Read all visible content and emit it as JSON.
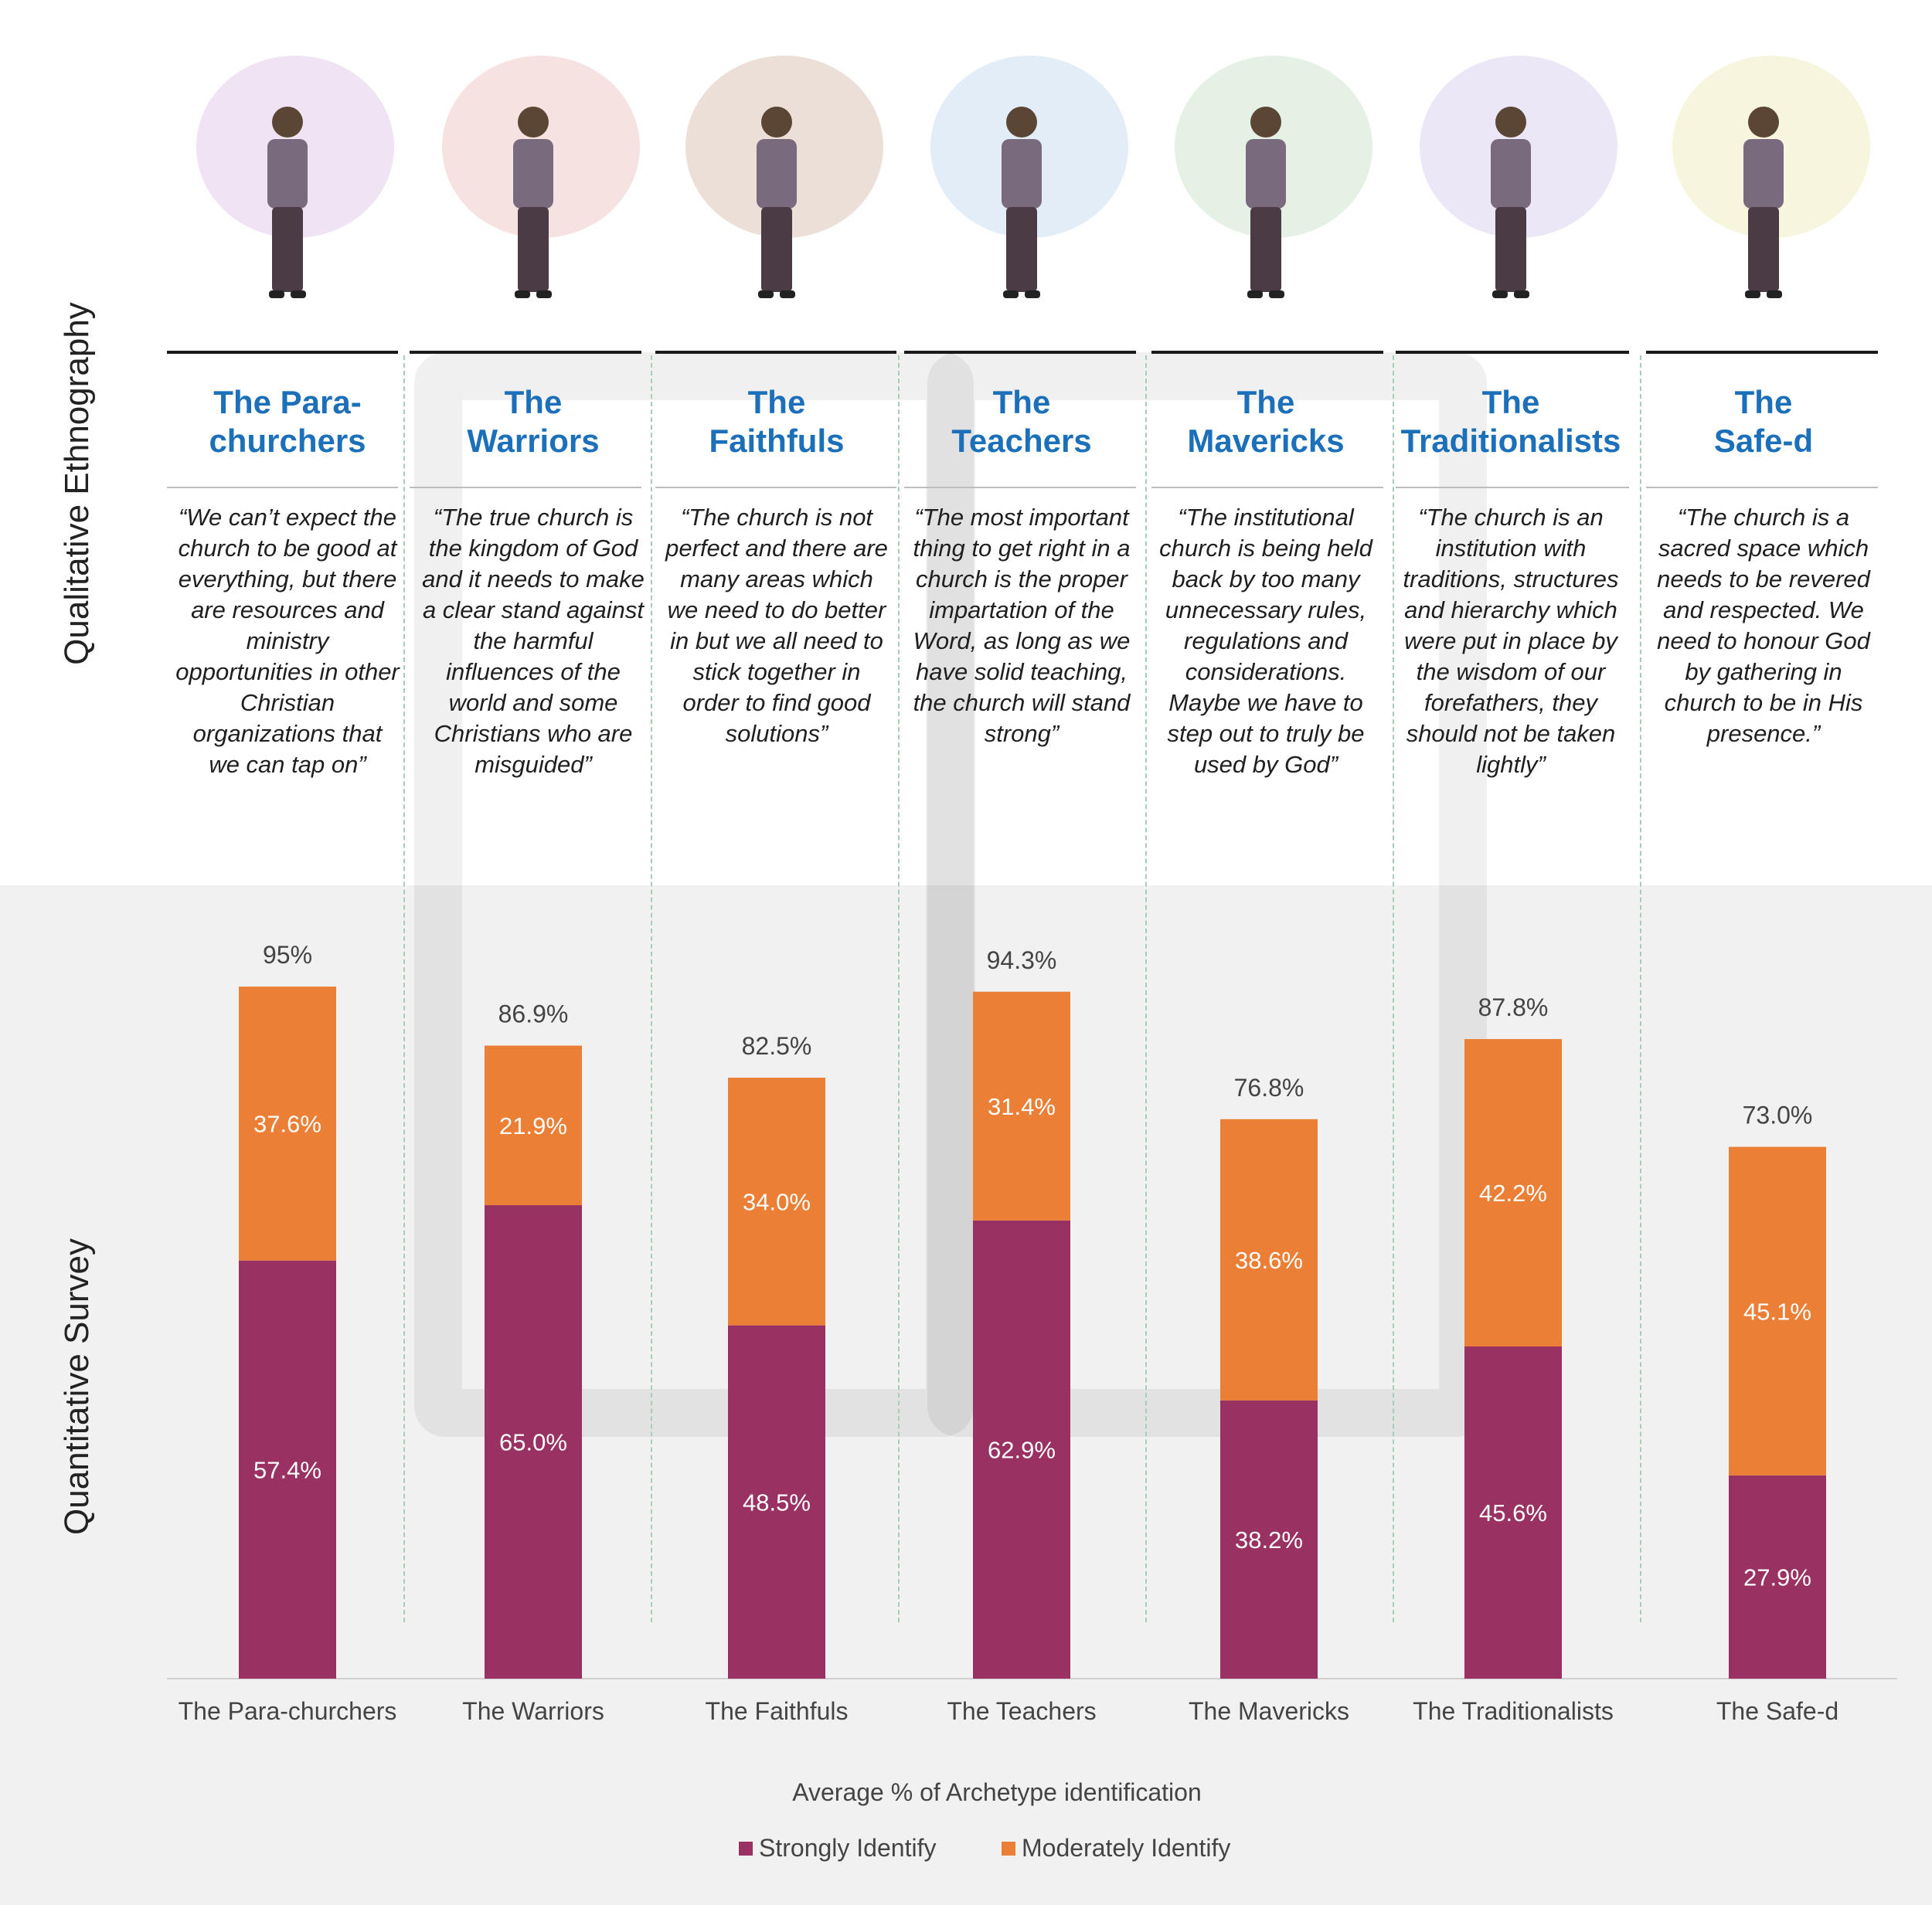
{
  "sections": {
    "top_label": "Qualitative Ethnography",
    "bottom_label": "Quantitative Survey"
  },
  "archetypes": [
    {
      "title_line1": "The Para-",
      "title_line2": "churchers",
      "quote": "“We can’t expect the church to be good at everything, but there are resources and ministry opportunities in other Christian organizations that we can tap on”",
      "illustration": "person-at-signpost-icon",
      "blob_color": "#efe3f4"
    },
    {
      "title_line1": "The",
      "title_line2": "Warriors",
      "quote": "“The true church is the kingdom of God and it needs to make a clear stand against the harmful influences of the world and some Christians who are misguided”",
      "illustration": "archer-icon",
      "blob_color": "#f6e3e1"
    },
    {
      "title_line1": "The",
      "title_line2": "Faithfuls",
      "quote": "“The church is not perfect and there are many areas which we need to do better in but we all need to stick together in order to find good solutions”",
      "illustration": "kneeling-at-cross-icon",
      "blob_color": "#ecdfd8"
    },
    {
      "title_line1": "The",
      "title_line2": "Teachers",
      "quote": "“The most important thing to get right in a church is the proper impartation of the Word, as long as we have solid teaching, the church will stand strong”",
      "illustration": "teacher-with-bible-icon",
      "blob_color": "#e2edf7"
    },
    {
      "title_line1": "The",
      "title_line2": "Mavericks",
      "quote": "“The institutional church is being held back by too many unnecessary rules, regulations and considerations. Maybe we have to step out to truly be used by God”",
      "illustration": "hiker-icon",
      "blob_color": "#e6f1e6"
    },
    {
      "title_line1": "The",
      "title_line2": "Traditionalists",
      "quote": "“The church is an institution with traditions, structures and hierarchy which were put in place by the wisdom of our forefathers, they should not be taken lightly”",
      "illustration": "woman-with-book-icon",
      "blob_color": "#ece7f7"
    },
    {
      "title_line1": "The",
      "title_line2": "Safe-d",
      "quote": "“The church is a sacred space which needs to be revered and respected. We need to honour God by gathering in church to be in His presence.”",
      "illustration": "man-in-pew-icon",
      "blob_color": "#f7f5dd"
    }
  ],
  "chart_data": {
    "type": "bar",
    "stacked": true,
    "categories": [
      "The Para-churchers",
      "The Warriors",
      "The Faithfuls",
      "The Teachers",
      "The Mavericks",
      "The Traditionalists",
      "The Safe-d"
    ],
    "series": [
      {
        "name": "Strongly Identify",
        "color": "#993162",
        "values": [
          57.4,
          65.0,
          48.5,
          62.9,
          38.2,
          45.6,
          27.9
        ],
        "labels": [
          "57.4%",
          "65.0%",
          "48.5%",
          "62.9%",
          "38.2%",
          "45.6%",
          "27.9%"
        ]
      },
      {
        "name": "Moderately Identify",
        "color": "#ea7f35",
        "values": [
          37.6,
          21.9,
          34.0,
          31.4,
          38.6,
          42.2,
          45.1
        ],
        "labels": [
          "37.6%",
          "21.9%",
          "34.0%",
          "31.4%",
          "38.6%",
          "42.2%",
          "45.1%"
        ]
      }
    ],
    "totals": [
      "95%",
      "86.9%",
      "82.5%",
      "94.3%",
      "76.8%",
      "87.8%",
      "73.0%"
    ],
    "xlabel": "Average % of Archetype identification",
    "ylim": [
      0,
      100
    ],
    "legend": "bottom-center"
  }
}
